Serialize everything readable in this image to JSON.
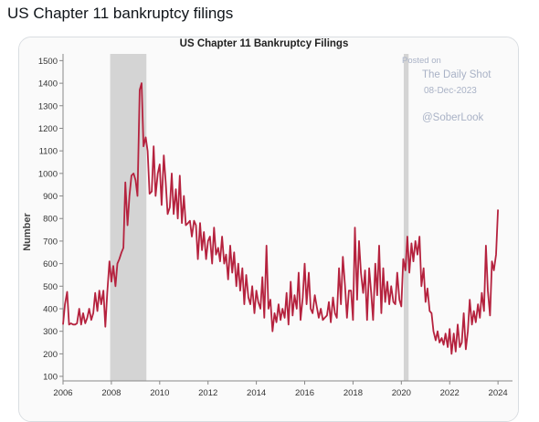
{
  "post": {
    "title": "US Chapter 11 bankruptcy filings"
  },
  "chart_data": {
    "type": "line",
    "title": "US Chapter 11 Bankruptcy Filings",
    "ylabel": "Number",
    "xlabel": "",
    "xlim": [
      2006,
      2024.6
    ],
    "ylim": [
      80,
      1530
    ],
    "x_ticks": [
      "2006",
      "2008",
      "2010",
      "2012",
      "2014",
      "2016",
      "2018",
      "2020",
      "2022",
      "2024"
    ],
    "y_ticks": [
      "100",
      "200",
      "300",
      "400",
      "500",
      "600",
      "700",
      "800",
      "900",
      "1000",
      "1100",
      "1200",
      "1300",
      "1400",
      "1500"
    ],
    "grid": false,
    "line_color": "#b5223e",
    "shaded_periods": [
      {
        "start": 2007.95,
        "end": 2009.45,
        "color": "#d4d4d4"
      },
      {
        "start": 2020.1,
        "end": 2020.3,
        "color": "#d4d4d4"
      }
    ],
    "annotations": {
      "posted_on": "Posted on",
      "source": "The Daily Shot",
      "date": "08-Dec-2023",
      "handle": "@SoberLook"
    },
    "series": [
      {
        "values": [
          [
            2006.0,
            330
          ],
          [
            2006.08,
            420
          ],
          [
            2006.17,
            475
          ],
          [
            2006.25,
            330
          ],
          [
            2006.33,
            335
          ],
          [
            2006.42,
            330
          ],
          [
            2006.5,
            330
          ],
          [
            2006.58,
            335
          ],
          [
            2006.67,
            400
          ],
          [
            2006.75,
            330
          ],
          [
            2006.83,
            380
          ],
          [
            2006.92,
            335
          ],
          [
            2007.0,
            360
          ],
          [
            2007.08,
            400
          ],
          [
            2007.17,
            350
          ],
          [
            2007.25,
            380
          ],
          [
            2007.33,
            470
          ],
          [
            2007.42,
            390
          ],
          [
            2007.5,
            480
          ],
          [
            2007.58,
            420
          ],
          [
            2007.67,
            480
          ],
          [
            2007.75,
            320
          ],
          [
            2007.83,
            470
          ],
          [
            2007.92,
            610
          ],
          [
            2008.0,
            520
          ],
          [
            2008.08,
            590
          ],
          [
            2008.17,
            500
          ],
          [
            2008.25,
            600
          ],
          [
            2008.33,
            620
          ],
          [
            2008.42,
            650
          ],
          [
            2008.5,
            670
          ],
          [
            2008.58,
            960
          ],
          [
            2008.67,
            770
          ],
          [
            2008.75,
            900
          ],
          [
            2008.83,
            990
          ],
          [
            2008.92,
            1000
          ],
          [
            2009.0,
            970
          ],
          [
            2009.08,
            900
          ],
          [
            2009.17,
            1370
          ],
          [
            2009.25,
            1400
          ],
          [
            2009.33,
            1120
          ],
          [
            2009.42,
            1160
          ],
          [
            2009.5,
            1100
          ],
          [
            2009.58,
            910
          ],
          [
            2009.67,
            920
          ],
          [
            2009.75,
            1120
          ],
          [
            2009.83,
            900
          ],
          [
            2009.92,
            1000
          ],
          [
            2010.0,
            1040
          ],
          [
            2010.08,
            860
          ],
          [
            2010.17,
            1080
          ],
          [
            2010.25,
            960
          ],
          [
            2010.33,
            820
          ],
          [
            2010.42,
            850
          ],
          [
            2010.5,
            1000
          ],
          [
            2010.58,
            820
          ],
          [
            2010.67,
            930
          ],
          [
            2010.75,
            800
          ],
          [
            2010.83,
            990
          ],
          [
            2010.92,
            780
          ],
          [
            2011.0,
            900
          ],
          [
            2011.08,
            770
          ],
          [
            2011.17,
            780
          ],
          [
            2011.25,
            790
          ],
          [
            2011.33,
            720
          ],
          [
            2011.42,
            790
          ],
          [
            2011.5,
            770
          ],
          [
            2011.58,
            620
          ],
          [
            2011.67,
            780
          ],
          [
            2011.75,
            660
          ],
          [
            2011.83,
            740
          ],
          [
            2011.92,
            620
          ],
          [
            2012.0,
            700
          ],
          [
            2012.08,
            720
          ],
          [
            2012.17,
            600
          ],
          [
            2012.25,
            760
          ],
          [
            2012.33,
            640
          ],
          [
            2012.42,
            670
          ],
          [
            2012.5,
            610
          ],
          [
            2012.58,
            720
          ],
          [
            2012.67,
            600
          ],
          [
            2012.75,
            640
          ],
          [
            2012.83,
            530
          ],
          [
            2012.92,
            680
          ],
          [
            2013.0,
            560
          ],
          [
            2013.08,
            650
          ],
          [
            2013.17,
            500
          ],
          [
            2013.25,
            600
          ],
          [
            2013.33,
            480
          ],
          [
            2013.42,
            580
          ],
          [
            2013.5,
            420
          ],
          [
            2013.58,
            550
          ],
          [
            2013.67,
            450
          ],
          [
            2013.75,
            420
          ],
          [
            2013.83,
            500
          ],
          [
            2013.92,
            380
          ],
          [
            2014.0,
            480
          ],
          [
            2014.08,
            430
          ],
          [
            2014.17,
            400
          ],
          [
            2014.25,
            540
          ],
          [
            2014.33,
            360
          ],
          [
            2014.42,
            680
          ],
          [
            2014.5,
            400
          ],
          [
            2014.58,
            440
          ],
          [
            2014.67,
            300
          ],
          [
            2014.75,
            380
          ],
          [
            2014.83,
            340
          ],
          [
            2014.92,
            420
          ],
          [
            2015.0,
            350
          ],
          [
            2015.08,
            400
          ],
          [
            2015.17,
            360
          ],
          [
            2015.25,
            470
          ],
          [
            2015.33,
            330
          ],
          [
            2015.42,
            520
          ],
          [
            2015.5,
            370
          ],
          [
            2015.58,
            460
          ],
          [
            2015.67,
            400
          ],
          [
            2015.75,
            560
          ],
          [
            2015.83,
            350
          ],
          [
            2015.92,
            450
          ],
          [
            2016.0,
            600
          ],
          [
            2016.08,
            420
          ],
          [
            2016.17,
            560
          ],
          [
            2016.25,
            400
          ],
          [
            2016.33,
            380
          ],
          [
            2016.42,
            460
          ],
          [
            2016.5,
            410
          ],
          [
            2016.58,
            360
          ],
          [
            2016.67,
            400
          ],
          [
            2016.75,
            350
          ],
          [
            2016.83,
            360
          ],
          [
            2016.92,
            370
          ],
          [
            2017.0,
            430
          ],
          [
            2017.08,
            340
          ],
          [
            2017.17,
            450
          ],
          [
            2017.25,
            380
          ],
          [
            2017.33,
            360
          ],
          [
            2017.42,
            580
          ],
          [
            2017.5,
            420
          ],
          [
            2017.58,
            630
          ],
          [
            2017.67,
            500
          ],
          [
            2017.75,
            360
          ],
          [
            2017.83,
            480
          ],
          [
            2017.92,
            480
          ],
          [
            2018.0,
            350
          ],
          [
            2018.08,
            760
          ],
          [
            2018.17,
            440
          ],
          [
            2018.25,
            700
          ],
          [
            2018.33,
            560
          ],
          [
            2018.42,
            470
          ],
          [
            2018.5,
            570
          ],
          [
            2018.58,
            350
          ],
          [
            2018.67,
            580
          ],
          [
            2018.75,
            470
          ],
          [
            2018.83,
            350
          ],
          [
            2018.92,
            600
          ],
          [
            2019.0,
            460
          ],
          [
            2019.08,
            680
          ],
          [
            2019.17,
            380
          ],
          [
            2019.25,
            580
          ],
          [
            2019.33,
            430
          ],
          [
            2019.42,
            520
          ],
          [
            2019.5,
            420
          ],
          [
            2019.58,
            500
          ],
          [
            2019.67,
            430
          ],
          [
            2019.75,
            420
          ],
          [
            2019.83,
            560
          ],
          [
            2019.92,
            440
          ],
          [
            2020.0,
            410
          ],
          [
            2020.08,
            620
          ],
          [
            2020.17,
            570
          ],
          [
            2020.25,
            720
          ],
          [
            2020.33,
            560
          ],
          [
            2020.42,
            690
          ],
          [
            2020.5,
            610
          ],
          [
            2020.58,
            700
          ],
          [
            2020.67,
            640
          ],
          [
            2020.75,
            720
          ],
          [
            2020.83,
            500
          ],
          [
            2020.92,
            580
          ],
          [
            2021.0,
            430
          ],
          [
            2021.08,
            490
          ],
          [
            2021.17,
            390
          ],
          [
            2021.25,
            380
          ],
          [
            2021.33,
            300
          ],
          [
            2021.42,
            260
          ],
          [
            2021.5,
            300
          ],
          [
            2021.58,
            250
          ],
          [
            2021.67,
            270
          ],
          [
            2021.75,
            240
          ],
          [
            2021.83,
            290
          ],
          [
            2021.92,
            230
          ],
          [
            2022.0,
            310
          ],
          [
            2022.08,
            200
          ],
          [
            2022.17,
            290
          ],
          [
            2022.25,
            210
          ],
          [
            2022.33,
            330
          ],
          [
            2022.42,
            230
          ],
          [
            2022.5,
            250
          ],
          [
            2022.58,
            380
          ],
          [
            2022.67,
            220
          ],
          [
            2022.75,
            300
          ],
          [
            2022.83,
            440
          ],
          [
            2022.92,
            330
          ],
          [
            2023.0,
            390
          ],
          [
            2023.08,
            340
          ],
          [
            2023.17,
            420
          ],
          [
            2023.25,
            360
          ],
          [
            2023.33,
            470
          ],
          [
            2023.42,
            390
          ],
          [
            2023.5,
            680
          ],
          [
            2023.58,
            480
          ],
          [
            2023.67,
            370
          ],
          [
            2023.75,
            610
          ],
          [
            2023.83,
            570
          ],
          [
            2023.92,
            640
          ],
          [
            2024.0,
            840
          ]
        ]
      }
    ]
  }
}
